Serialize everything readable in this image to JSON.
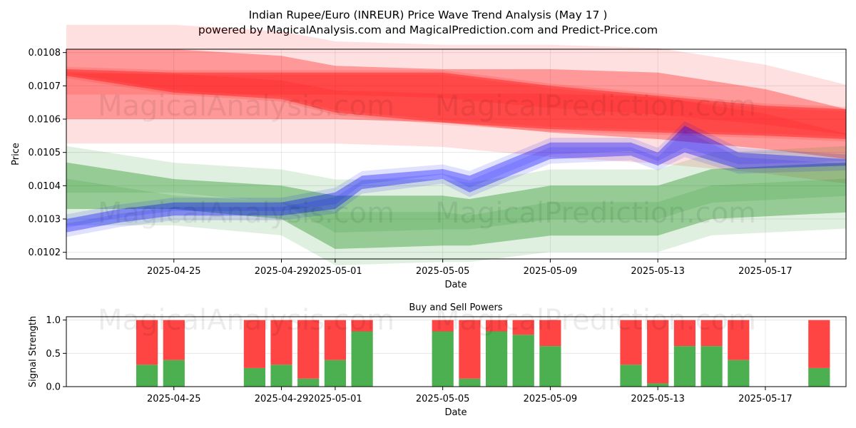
{
  "title": "Indian Rupee/Euro (INREUR) Price Wave Trend Analysis (May 17 )",
  "subtitle": "powered by MagicalAnalysis.com and MagicalPrediction.com and Predict-Price.com",
  "watermarks": [
    "MagicalAnalysis.com",
    "MagicalPrediction.com"
  ],
  "colors": {
    "red": "#ff0000",
    "green": "#008000",
    "blue": "#0000ff",
    "buy": "#4caf50",
    "sell": "#ff4444"
  },
  "chart_data": [
    {
      "type": "area",
      "xlabel": "Date",
      "ylabel": "Price",
      "x_ticks": [
        "2025-04-25",
        "2025-04-29",
        "2025-05-01",
        "2025-05-05",
        "2025-05-09",
        "2025-05-13",
        "2025-05-17"
      ],
      "y_ticks": [
        "0.0102",
        "0.0103",
        "0.0104",
        "0.0105",
        "0.0106",
        "0.0107",
        "0.0108"
      ],
      "xlim": [
        "2025-04-21",
        "2025-05-20"
      ],
      "ylim": [
        0.01018,
        0.01081
      ],
      "grid": true,
      "series": [
        {
          "color": "red",
          "x": [
            "2025-04-21",
            "2025-04-25",
            "2025-04-29",
            "2025-05-01",
            "2025-05-05",
            "2025-05-09",
            "2025-05-13",
            "2025-05-17",
            "2025-05-20"
          ],
          "upper": [
            0.01081,
            0.01081,
            0.01079,
            0.01076,
            0.01075,
            0.01075,
            0.01074,
            0.01069,
            0.01063
          ],
          "lower": [
            0.0106,
            0.0106,
            0.0106,
            0.0106,
            0.01059,
            0.01056,
            0.01054,
            0.01051,
            0.01048
          ]
        },
        {
          "color": "red",
          "x": [
            "2025-04-21",
            "2025-04-25",
            "2025-04-29",
            "2025-05-01",
            "2025-05-05",
            "2025-05-09",
            "2025-05-13",
            "2025-05-17",
            "2025-05-20"
          ],
          "upper": [
            0.01075,
            0.01074,
            0.01074,
            0.01074,
            0.01074,
            0.0107,
            0.01067,
            0.01064,
            0.01063
          ],
          "lower": [
            0.01073,
            0.01068,
            0.01066,
            0.01062,
            0.01059,
            0.01057,
            0.01056,
            0.01055,
            0.01054
          ]
        },
        {
          "color": "green",
          "x": [
            "2025-04-21",
            "2025-04-25",
            "2025-04-29",
            "2025-05-01",
            "2025-05-05",
            "2025-05-06",
            "2025-05-09",
            "2025-05-13",
            "2025-05-15",
            "2025-05-20"
          ],
          "upper": [
            0.01047,
            0.01042,
            0.0104,
            0.01037,
            0.01037,
            0.01036,
            0.0104,
            0.0104,
            0.01045,
            0.01047
          ],
          "lower": [
            0.01033,
            0.01033,
            0.0103,
            0.01021,
            0.01022,
            0.01022,
            0.01025,
            0.01025,
            0.0103,
            0.01032
          ]
        },
        {
          "color": "blue",
          "x": [
            "2025-04-21",
            "2025-04-23",
            "2025-04-25",
            "2025-04-29",
            "2025-05-01",
            "2025-05-02",
            "2025-05-05",
            "2025-05-06",
            "2025-05-09",
            "2025-05-12",
            "2025-05-13",
            "2025-05-14",
            "2025-05-16",
            "2025-05-20"
          ],
          "upper": [
            0.0103,
            0.01033,
            0.01035,
            0.01035,
            0.01038,
            0.01043,
            0.01045,
            0.01043,
            0.01053,
            0.01053,
            0.0105,
            0.01058,
            0.0105,
            0.01048
          ],
          "lower": [
            0.01026,
            0.01029,
            0.01031,
            0.01031,
            0.01033,
            0.01039,
            0.01042,
            0.01038,
            0.01048,
            0.01049,
            0.01046,
            0.0105,
            0.01045,
            0.01046
          ]
        }
      ]
    },
    {
      "type": "bar",
      "title": "Buy and Sell Powers",
      "xlabel": "Date",
      "ylabel": "Signal Strength",
      "x_ticks": [
        "2025-04-25",
        "2025-04-29",
        "2025-05-01",
        "2025-05-05",
        "2025-05-09",
        "2025-05-13",
        "2025-05-17"
      ],
      "y_ticks": [
        "0.0",
        "0.5",
        "1.0"
      ],
      "xlim": [
        "2025-04-21",
        "2025-05-20"
      ],
      "ylim": [
        0,
        1.05
      ],
      "grid": true,
      "categories": [
        "2025-04-24",
        "2025-04-25",
        "2025-04-28",
        "2025-04-29",
        "2025-04-30",
        "2025-05-01",
        "2025-05-02",
        "2025-05-05",
        "2025-05-06",
        "2025-05-07",
        "2025-05-08",
        "2025-05-09",
        "2025-05-12",
        "2025-05-13",
        "2025-05-14",
        "2025-05-15",
        "2025-05-16",
        "2025-05-19"
      ],
      "series": [
        {
          "color": "buy",
          "values": [
            0.33,
            0.4,
            0.28,
            0.33,
            0.12,
            0.4,
            0.83,
            0.83,
            0.12,
            0.83,
            0.78,
            0.61,
            0.33,
            0.05,
            0.61,
            0.61,
            0.4,
            0.28
          ]
        },
        {
          "color": "sell",
          "values": [
            0.67,
            0.6,
            0.72,
            0.67,
            0.88,
            0.6,
            0.17,
            0.17,
            0.88,
            0.17,
            0.22,
            0.39,
            0.67,
            0.95,
            0.39,
            0.39,
            0.6,
            0.72
          ]
        }
      ]
    }
  ]
}
